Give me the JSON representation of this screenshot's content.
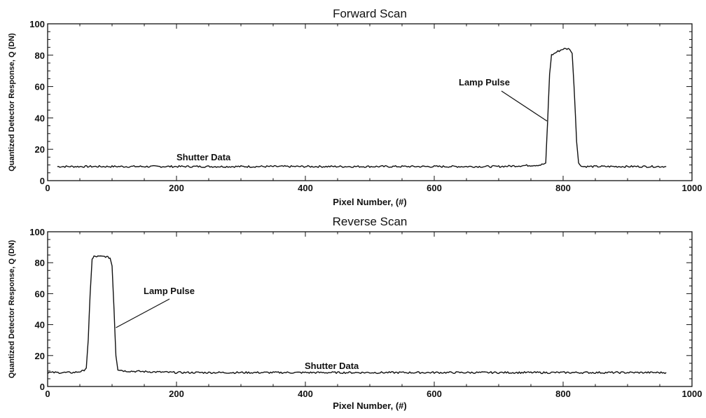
{
  "chart_data": [
    {
      "type": "line",
      "title": "Forward Scan",
      "xlabel": "Pixel Number, (#)",
      "ylabel": "Quantized Detector Response, Q (DN)",
      "xlim": [
        0,
        1000
      ],
      "ylim": [
        0,
        100
      ],
      "xticks": [
        "0",
        "200",
        "400",
        "600",
        "800",
        "1000"
      ],
      "yticks": [
        "0",
        "20",
        "40",
        "60",
        "80",
        "100"
      ],
      "grid": false,
      "series": [
        {
          "baseline": 9,
          "x": [
            15,
            100,
            200,
            300,
            400,
            500,
            600,
            700,
            765,
            773,
            776,
            779,
            782,
            790,
            800,
            810,
            814,
            817,
            821,
            824,
            830,
            900,
            960
          ],
          "values": [
            9,
            9,
            9,
            9,
            9,
            9,
            9,
            9,
            10,
            11,
            38,
            68,
            80,
            82,
            84,
            84,
            81,
            60,
            25,
            11,
            9,
            9,
            9
          ]
        }
      ],
      "annotations": [
        {
          "text": "Lamp Pulse",
          "points_to": [
            775,
            38
          ]
        },
        {
          "text": "Shutter Data",
          "points_to": [
            200,
            9
          ]
        }
      ]
    },
    {
      "type": "line",
      "title": "Reverse Scan",
      "xlabel": "Pixel Number, (#)",
      "ylabel": "Quantized Detector Response, Q (DN)",
      "xlim": [
        0,
        1000
      ],
      "ylim": [
        0,
        100
      ],
      "xticks": [
        "0",
        "200",
        "400",
        "600",
        "800",
        "1000"
      ],
      "yticks": [
        "0",
        "20",
        "40",
        "60",
        "80",
        "100"
      ],
      "grid": false,
      "series": [
        {
          "baseline": 9,
          "x": [
            0,
            40,
            55,
            60,
            63,
            66,
            69,
            72,
            80,
            90,
            97,
            100,
            103,
            106,
            109,
            120,
            200,
            300,
            400,
            500,
            600,
            700,
            800,
            900,
            960
          ],
          "values": [
            9,
            9,
            10,
            12,
            30,
            60,
            82,
            84,
            84,
            84,
            83,
            78,
            50,
            20,
            11,
            10,
            9,
            9,
            9,
            9,
            9,
            9,
            9,
            9,
            9
          ]
        }
      ],
      "annotations": [
        {
          "text": "Lamp Pulse",
          "points_to": [
            106,
            38
          ]
        },
        {
          "text": "Shutter Data",
          "points_to": [
            400,
            9
          ]
        }
      ]
    }
  ]
}
